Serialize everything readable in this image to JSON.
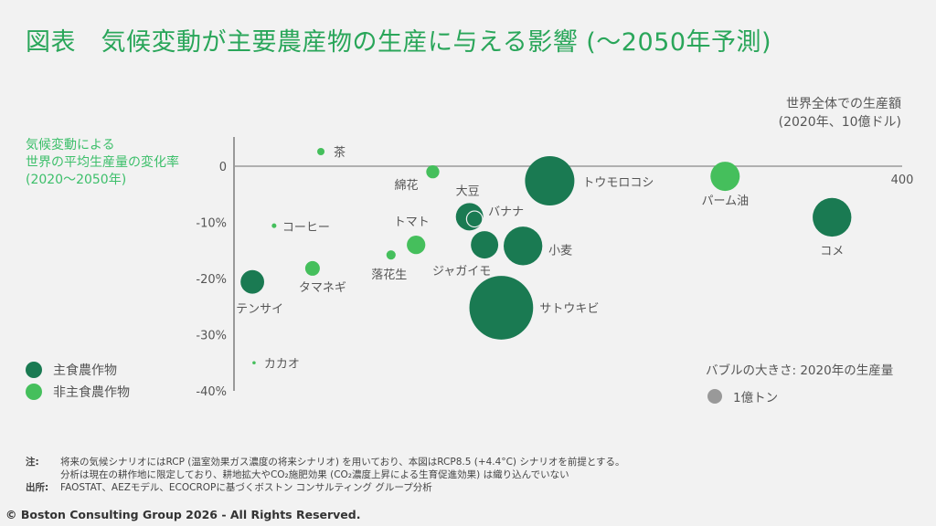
{
  "title": "図表　気候変動が主要農産物の生産に与える影響 (～2050年予測)",
  "chart_data": {
    "type": "bubble",
    "ylabel": [
      "気候変動による",
      "世界の平均生産量の変化率",
      "(2020～2050年)"
    ],
    "xlabel": [
      "世界全体での生産額",
      "(2020年、10億ドル)"
    ],
    "xlim": [
      0,
      400
    ],
    "ylim": [
      -40,
      5
    ],
    "x_ticks": [
      "400"
    ],
    "y_ticks": [
      {
        "v": 0,
        "label": "0"
      },
      {
        "v": -10,
        "label": "-10%"
      },
      {
        "v": -20,
        "label": "-20%"
      },
      {
        "v": -30,
        "label": "-30%"
      },
      {
        "v": -40,
        "label": "-40%"
      }
    ],
    "grid": false,
    "legend": [
      {
        "name": "主食農作物",
        "color": "#1a7a52"
      },
      {
        "name": "非主食農作物",
        "color": "#45bf5c"
      }
    ],
    "size_legend": {
      "title": "バブルの大きさ: 2020年の生産量",
      "label": "1億トン",
      "value": 1,
      "color": "#999999"
    },
    "points": [
      {
        "name": "茶",
        "x": 52,
        "y": 2.6,
        "size": 0.25,
        "group": "非主食農作物"
      },
      {
        "name": "綿花",
        "x": 119,
        "y": -1.0,
        "size": 0.8,
        "group": "非主食農作物"
      },
      {
        "name": "トウモロコシ",
        "x": 189,
        "y": -2.6,
        "size": 11.4,
        "group": "主食農作物"
      },
      {
        "name": "パーム油",
        "x": 294,
        "y": -1.8,
        "size": 4.0,
        "group": "非主食農作物"
      },
      {
        "name": "大豆",
        "x": 141,
        "y": -9.0,
        "size": 3.5,
        "group": "主食農作物"
      },
      {
        "name": "バナナ",
        "x": 144,
        "y": -9.4,
        "size": 1.2,
        "group": "主食農作物"
      },
      {
        "name": "コーヒー",
        "x": 24,
        "y": -10.6,
        "size": 0.1,
        "group": "非主食農作物"
      },
      {
        "name": "トマト",
        "x": 109,
        "y": -14.0,
        "size": 1.6,
        "group": "非主食農作物"
      },
      {
        "name": "落花生",
        "x": 94,
        "y": -15.8,
        "size": 0.4,
        "group": "非主食農作物"
      },
      {
        "name": "ジャガイモ",
        "x": 150,
        "y": -14.0,
        "size": 3.5,
        "group": "主食農作物"
      },
      {
        "name": "小麦",
        "x": 173,
        "y": -14.2,
        "size": 7.0,
        "group": "主食農作物"
      },
      {
        "name": "コメ",
        "x": 358,
        "y": -9.1,
        "size": 7.0,
        "group": "主食農作物"
      },
      {
        "name": "タマネギ",
        "x": 47,
        "y": -18.2,
        "size": 1.0,
        "group": "非主食農作物"
      },
      {
        "name": "テンサイ",
        "x": 11,
        "y": -20.6,
        "size": 2.6,
        "group": "主食農作物"
      },
      {
        "name": "サトウキビ",
        "x": 160,
        "y": -25.2,
        "size": 19.0,
        "group": "主食農作物"
      },
      {
        "name": "カカオ",
        "x": 12,
        "y": -35.0,
        "size": 0.05,
        "group": "非主食農作物"
      }
    ]
  },
  "notes": {
    "note_key": "注:",
    "note_lines": [
      "将来の気候シナリオにはRCP (温室効果ガス濃度の将来シナリオ) を用いており、本図はRCP8.5 (+4.4°C) シナリオを前提とする。",
      "分析は現在の耕作地に限定しており、耕地拡大やCO₂施肥効果 (CO₂濃度上昇による生育促進効果) は織り込んでいない"
    ],
    "source_key": "出所:",
    "source": "FAOSTAT、AEZモデル、ECOCROPに基づくボストン コンサルティング グループ分析"
  },
  "copyright": "© Boston Consulting Group 2026 - All Rights Reserved."
}
